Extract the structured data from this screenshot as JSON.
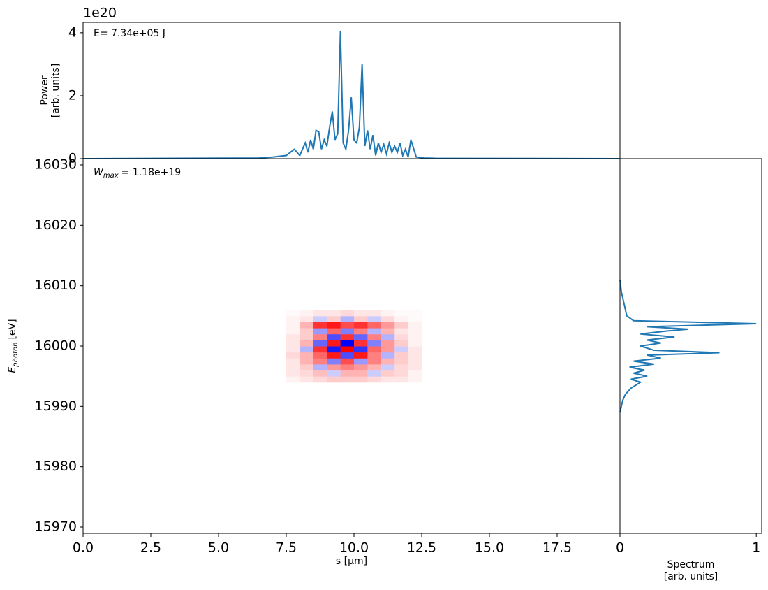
{
  "chart_data": [
    {
      "type": "line",
      "annotation": "E= 7.34e+05 J",
      "offset_text": "1e20",
      "ylabel": [
        "Power",
        "[arb. units]"
      ],
      "color": "#1f77b4",
      "x": [
        0,
        6.5,
        7.0,
        7.5,
        7.8,
        8.0,
        8.2,
        8.3,
        8.4,
        8.5,
        8.6,
        8.7,
        8.8,
        8.9,
        9.0,
        9.1,
        9.2,
        9.3,
        9.4,
        9.5,
        9.6,
        9.7,
        9.8,
        9.9,
        10.0,
        10.1,
        10.2,
        10.3,
        10.4,
        10.5,
        10.6,
        10.7,
        10.8,
        10.9,
        11.0,
        11.1,
        11.2,
        11.3,
        11.4,
        11.5,
        11.6,
        11.7,
        11.8,
        11.9,
        12.0,
        12.1,
        12.3,
        12.6,
        13.0,
        19.8
      ],
      "values": [
        0,
        0.02,
        0.05,
        0.1,
        0.3,
        0.1,
        0.5,
        0.2,
        0.6,
        0.3,
        0.9,
        0.85,
        0.3,
        0.6,
        0.4,
        1.0,
        1.5,
        0.6,
        0.8,
        4.05,
        0.5,
        0.3,
        0.9,
        1.95,
        0.6,
        0.5,
        1.0,
        3.0,
        0.4,
        0.9,
        0.3,
        0.75,
        0.1,
        0.5,
        0.2,
        0.45,
        0.15,
        0.5,
        0.2,
        0.4,
        0.2,
        0.5,
        0.1,
        0.3,
        0.05,
        0.6,
        0.05,
        0.02,
        0.01,
        0
      ],
      "xlim": [
        0,
        19.82
      ],
      "ylim": [
        0,
        4.33
      ],
      "yticks": [
        0,
        2,
        4
      ]
    },
    {
      "type": "heatmap",
      "annotation": {
        "main": "W",
        "sub": "max",
        "rest": "= 1.18e+19"
      },
      "xlabel": "s [μm]",
      "ylabel": {
        "main": "E",
        "sub": "photon",
        "rest": "[eV]"
      },
      "x": [
        7.75,
        8.25,
        8.75,
        9.25,
        9.75,
        10.25,
        10.75,
        11.25,
        11.75,
        12.25
      ],
      "y": [
        15994.5,
        15995.5,
        15996.5,
        15997.5,
        15998.5,
        15999.5,
        16000.5,
        16001.5,
        16002.5,
        16003.5,
        16004.5,
        16005.5
      ],
      "z": [
        [
          0.05,
          0.1,
          0.15,
          0.2,
          0.2,
          0.2,
          0.15,
          0.1,
          0.1,
          0.05
        ],
        [
          0.1,
          0.15,
          0.25,
          -0.2,
          0.3,
          0.3,
          -0.2,
          0.2,
          0.15,
          0.05
        ],
        [
          0.1,
          0.2,
          -0.3,
          0.4,
          0.5,
          0.4,
          0.3,
          -0.2,
          0.15,
          0.1
        ],
        [
          0.1,
          0.3,
          0.5,
          -0.5,
          0.7,
          -0.4,
          0.5,
          0.3,
          0.2,
          0.1
        ],
        [
          0.15,
          0.3,
          0.6,
          0.9,
          -0.7,
          0.9,
          0.5,
          -0.3,
          0.2,
          0.1
        ],
        [
          0.1,
          -0.3,
          0.8,
          -0.9,
          1.0,
          -0.8,
          0.6,
          0.4,
          -0.2,
          0.1
        ],
        [
          0.1,
          0.3,
          -0.6,
          0.9,
          -1.0,
          0.8,
          -0.5,
          0.4,
          0.2,
          0.05
        ],
        [
          0.1,
          0.2,
          0.5,
          -0.7,
          0.8,
          -0.6,
          0.5,
          -0.3,
          0.15,
          0.05
        ],
        [
          0.05,
          0.2,
          -0.4,
          0.6,
          -0.5,
          0.5,
          -0.3,
          0.3,
          0.1,
          0.05
        ],
        [
          0.05,
          0.3,
          0.8,
          0.9,
          0.7,
          0.8,
          0.6,
          0.4,
          0.2,
          0.05
        ],
        [
          0.05,
          0.1,
          -0.2,
          0.2,
          -0.3,
          0.2,
          -0.2,
          0.15,
          0.05,
          0.02
        ],
        [
          0.02,
          0.05,
          0.1,
          0.1,
          0.15,
          0.1,
          0.1,
          0.05,
          0.02,
          0.02
        ]
      ],
      "xlim": [
        0,
        19.82
      ],
      "ylim": [
        15968.96,
        16031.04
      ],
      "xticks": [
        {
          "value": 0,
          "label": "0.0"
        },
        {
          "value": 2.5,
          "label": "2.5"
        },
        {
          "value": 5,
          "label": "5.0"
        },
        {
          "value": 7.5,
          "label": "7.5"
        },
        {
          "value": 10,
          "label": "10.0"
        },
        {
          "value": 12.5,
          "label": "12.5"
        },
        {
          "value": 15,
          "label": "15.0"
        },
        {
          "value": 17.5,
          "label": "17.5"
        }
      ],
      "yticks": [
        15970,
        15980,
        15990,
        16000,
        16010,
        16020,
        16030
      ]
    },
    {
      "type": "line",
      "orientation": "horizontal",
      "xlabel": [
        "Spectrum",
        "[arb. units]"
      ],
      "color": "#1f77b4",
      "y": [
        15989,
        15990,
        15991,
        15992,
        15993,
        15994,
        15994.5,
        15995,
        15995.5,
        15996,
        15996.5,
        15997,
        15997.5,
        15998,
        15998.5,
        15998.9,
        15999.3,
        16000,
        16000.5,
        16001,
        16001.5,
        16002,
        16002.5,
        16002.8,
        16003.2,
        16003.7,
        16004.2,
        16005,
        16006,
        16007,
        16008,
        16009,
        16011
      ],
      "values": [
        0,
        0.01,
        0.02,
        0.04,
        0.08,
        0.15,
        0.08,
        0.2,
        0.1,
        0.18,
        0.07,
        0.25,
        0.1,
        0.3,
        0.2,
        0.73,
        0.25,
        0.15,
        0.3,
        0.2,
        0.4,
        0.15,
        0.35,
        0.5,
        0.2,
        1.0,
        0.1,
        0.05,
        0.04,
        0.03,
        0.02,
        0.01,
        0
      ],
      "xlim": [
        0,
        1.04
      ],
      "ylim": [
        15968.96,
        16031.04
      ],
      "xticks": [
        0,
        1
      ]
    }
  ]
}
